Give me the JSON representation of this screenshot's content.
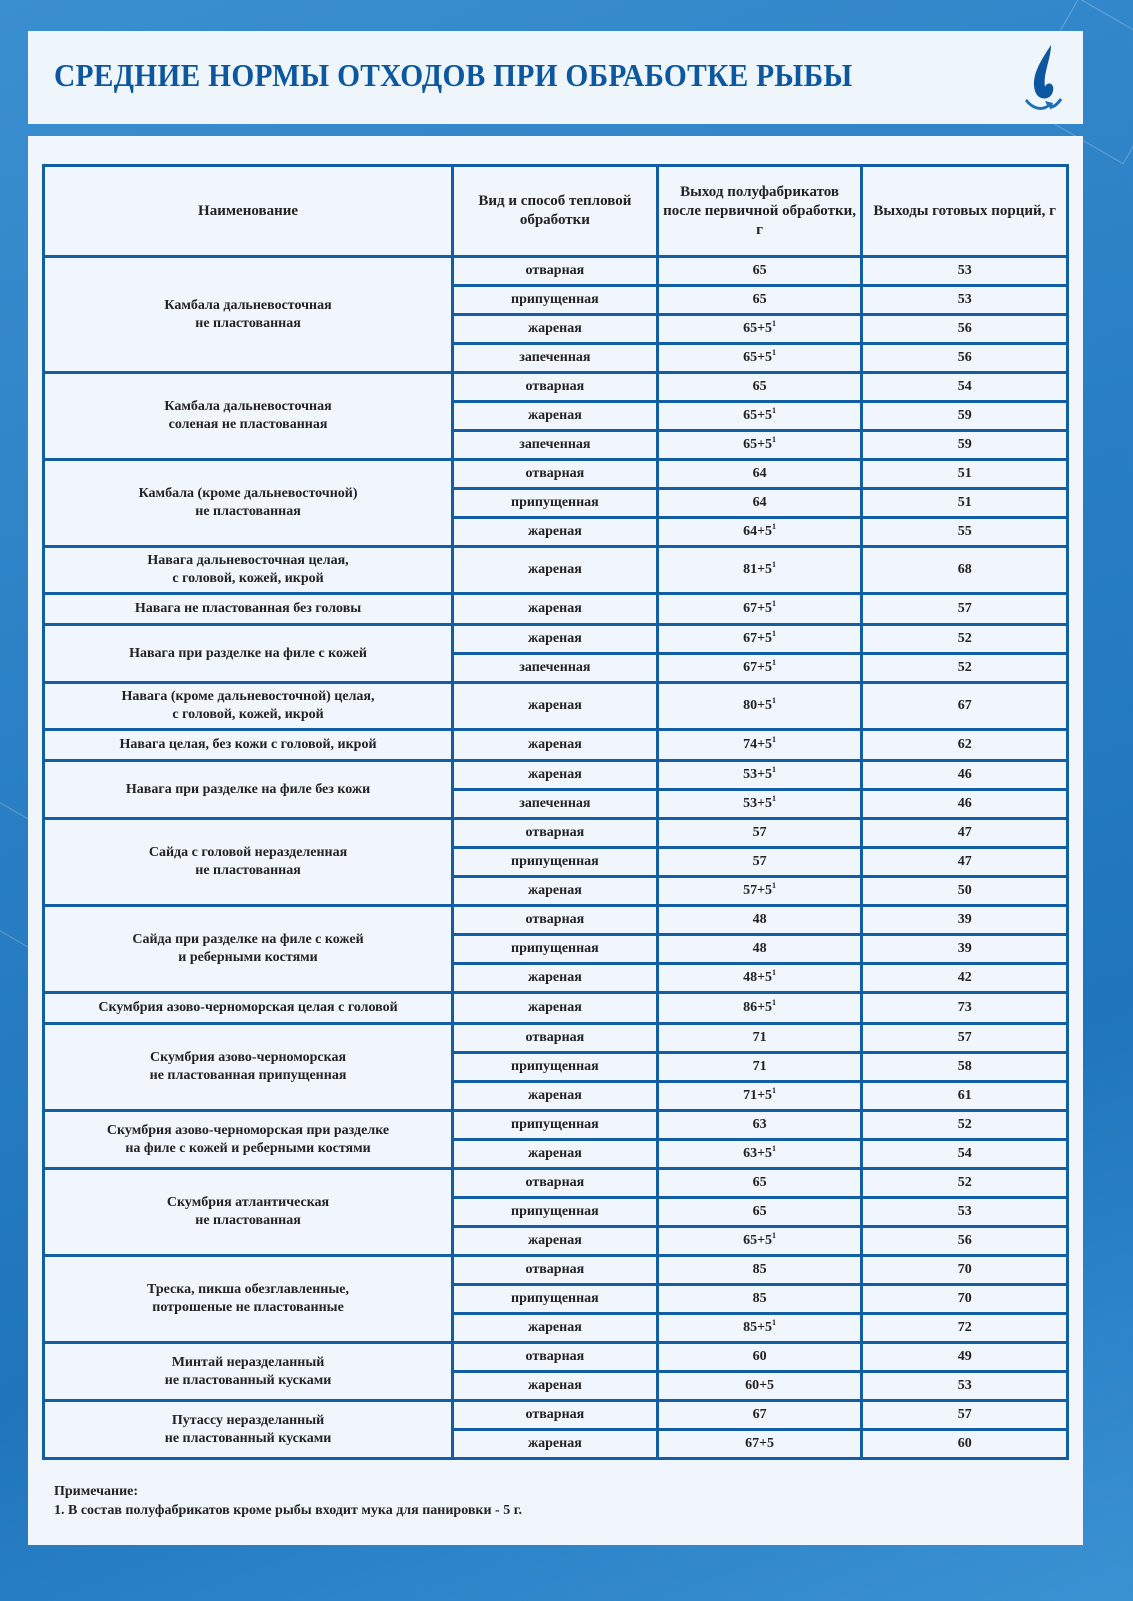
{
  "title": "СРЕДНИЕ НОРМЫ ОТХОДОВ ПРИ ОБРАБОТКЕ РЫБЫ",
  "colors": {
    "accent": "#115ea5",
    "title": "#0d57a0",
    "background": "#2a7fc4",
    "panel": "#f0f6fb"
  },
  "logo_icon": "water-drop-recycle-icon",
  "table": {
    "headers": [
      "Наименование",
      "Вид и способ тепловой обработки",
      "Выход полуфабрикатов после первичной обработки, г",
      "Выходы готовых порций, г"
    ],
    "groups": [
      {
        "name": "Камбала дальневосточная\nне пластованная",
        "rows": [
          [
            "отварная",
            "65",
            "",
            "53"
          ],
          [
            "припущенная",
            "65",
            "",
            "53"
          ],
          [
            "жареная",
            "65+5",
            "1",
            "56"
          ],
          [
            "запеченная",
            "65+5",
            "1",
            "56"
          ]
        ]
      },
      {
        "name": "Камбала дальневосточная\nсоленая не пластованная",
        "rows": [
          [
            "отварная",
            "65",
            "",
            "54"
          ],
          [
            "жареная",
            "65+5",
            "1",
            "59"
          ],
          [
            "запеченная",
            "65+5",
            "1",
            "59"
          ]
        ]
      },
      {
        "name": "Камбала (кроме дальневосточной)\nне пластованная",
        "rows": [
          [
            "отварная",
            "64",
            "",
            "51"
          ],
          [
            "припущенная",
            "64",
            "",
            "51"
          ],
          [
            "жареная",
            "64+5",
            "1",
            "55"
          ]
        ]
      },
      {
        "name": "Навага дальневосточная целая,\nс головой, кожей, икрой",
        "rows": [
          [
            "жареная",
            "81+5",
            "1",
            "68"
          ]
        ]
      },
      {
        "name": "Навага не пластованная без головы",
        "rows": [
          [
            "жареная",
            "67+5",
            "1",
            "57"
          ]
        ]
      },
      {
        "name": "Навага при разделке на филе с кожей",
        "rows": [
          [
            "жареная",
            "67+5",
            "1",
            "52"
          ],
          [
            "запеченная",
            "67+5",
            "1",
            "52"
          ]
        ]
      },
      {
        "name": "Навага  (кроме дальневосточной) целая,\nс головой, кожей, икрой",
        "rows": [
          [
            "жареная",
            "80+5",
            "1",
            "67"
          ]
        ]
      },
      {
        "name": "Навага целая, без кожи с головой, икрой",
        "rows": [
          [
            "жареная",
            "74+5",
            "1",
            "62"
          ]
        ]
      },
      {
        "name": "Навага при разделке на филе без кожи",
        "rows": [
          [
            "жареная",
            "53+5",
            "1",
            "46"
          ],
          [
            "запеченная",
            "53+5",
            "1",
            "46"
          ]
        ]
      },
      {
        "name": "Сайда с головой неразделенная\nне пластованная",
        "rows": [
          [
            "отварная",
            "57",
            "",
            "47"
          ],
          [
            "припущенная",
            "57",
            "",
            "47"
          ],
          [
            "жареная",
            "57+5",
            "1",
            "50"
          ]
        ]
      },
      {
        "name": "Сайда при разделке на филе с кожей\nи реберными костями",
        "rows": [
          [
            "отварная",
            "48",
            "",
            "39"
          ],
          [
            "припущенная",
            "48",
            "",
            "39"
          ],
          [
            "жареная",
            "48+5",
            "1",
            "42"
          ]
        ]
      },
      {
        "name": "Скумбрия азово-черноморская целая с головой",
        "rows": [
          [
            "жареная",
            "86+5",
            "1",
            "73"
          ]
        ]
      },
      {
        "name": "Скумбрия азово-черноморская\nне пластованная припущенная",
        "rows": [
          [
            "отварная",
            "71",
            "",
            "57"
          ],
          [
            "припущенная",
            "71",
            "",
            "58"
          ],
          [
            "жареная",
            "71+5",
            "1",
            "61"
          ]
        ]
      },
      {
        "name": "Скумбрия азово-черноморская при разделке\nна филе с кожей и реберными костями",
        "rows": [
          [
            "припущенная",
            "63",
            "",
            "52"
          ],
          [
            "жареная",
            "63+5",
            "1",
            "54"
          ]
        ]
      },
      {
        "name": "Скумбрия атлантическая\nне пластованная",
        "rows": [
          [
            "отварная",
            "65",
            "",
            "52"
          ],
          [
            "припущенная",
            "65",
            "",
            "53"
          ],
          [
            "жареная",
            "65+5",
            "1",
            "56"
          ]
        ]
      },
      {
        "name": "Треска, пикша обезглавленные,\nпотрошеные не пластованные",
        "rows": [
          [
            "отварная",
            "85",
            "",
            "70"
          ],
          [
            "припущенная",
            "85",
            "",
            "70"
          ],
          [
            "жареная",
            "85+5",
            "1",
            "72"
          ]
        ]
      },
      {
        "name": "Минтай неразделанный\nне пластованный кусками",
        "rows": [
          [
            "отварная",
            "60",
            "",
            "49"
          ],
          [
            "жареная",
            "60+5",
            "",
            "53"
          ]
        ]
      },
      {
        "name": "Путассу неразделанный\nне пластованный кусками",
        "rows": [
          [
            "отварная",
            "67",
            "",
            "57"
          ],
          [
            "жареная",
            "67+5",
            "",
            "60"
          ]
        ]
      }
    ]
  },
  "note": {
    "heading": "Примечание:",
    "text": "1. В состав полуфабрикатов кроме рыбы входит мука для панировки - 5 г."
  }
}
